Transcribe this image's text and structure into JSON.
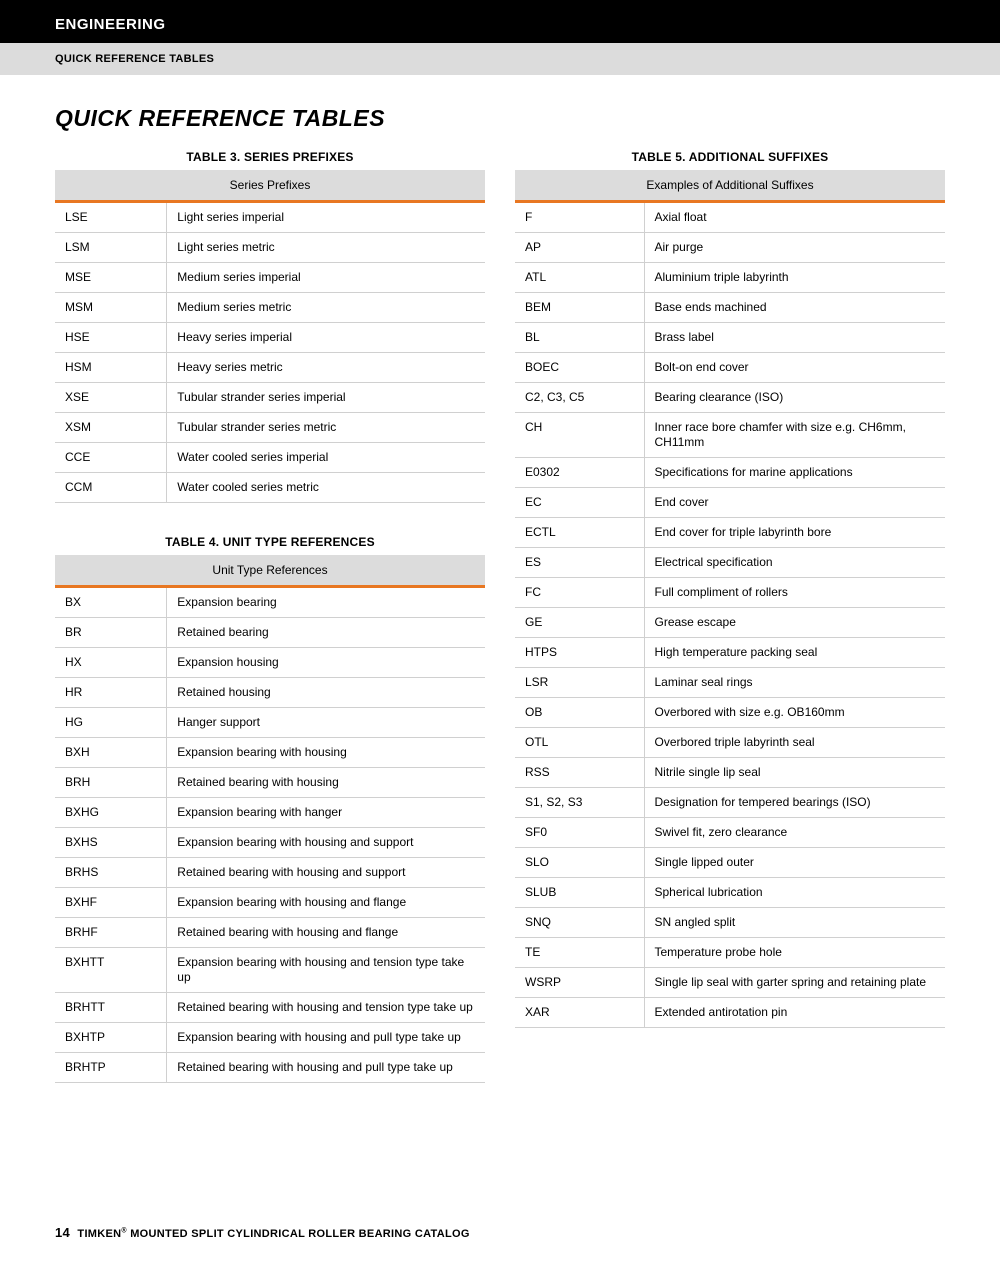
{
  "header": {
    "section": "ENGINEERING",
    "subsection": "QUICK REFERENCE TABLES"
  },
  "pageTitle": "QUICK REFERENCE TABLES",
  "colors": {
    "headerBg": "#000000",
    "subheaderBg": "#dcdcdc",
    "accentOrange": "#e87722",
    "rowBorder": "#d0d0d0"
  },
  "table3": {
    "caption": "TABLE 3. SERIES PREFIXES",
    "headerLabel": "Series Prefixes",
    "rows": [
      {
        "code": "LSE",
        "desc": "Light series imperial"
      },
      {
        "code": "LSM",
        "desc": "Light series metric"
      },
      {
        "code": "MSE",
        "desc": "Medium series imperial"
      },
      {
        "code": "MSM",
        "desc": "Medium series metric"
      },
      {
        "code": "HSE",
        "desc": "Heavy series imperial"
      },
      {
        "code": "HSM",
        "desc": "Heavy series metric"
      },
      {
        "code": "XSE",
        "desc": "Tubular strander series imperial"
      },
      {
        "code": "XSM",
        "desc": "Tubular strander series metric"
      },
      {
        "code": "CCE",
        "desc": "Water cooled series imperial"
      },
      {
        "code": "CCM",
        "desc": "Water cooled series metric"
      }
    ]
  },
  "table4": {
    "caption": "TABLE 4. UNIT TYPE REFERENCES",
    "headerLabel": "Unit Type References",
    "rows": [
      {
        "code": "BX",
        "desc": "Expansion bearing"
      },
      {
        "code": "BR",
        "desc": "Retained bearing"
      },
      {
        "code": "HX",
        "desc": "Expansion housing"
      },
      {
        "code": "HR",
        "desc": "Retained housing"
      },
      {
        "code": "HG",
        "desc": "Hanger support"
      },
      {
        "code": "BXH",
        "desc": "Expansion bearing with housing"
      },
      {
        "code": "BRH",
        "desc": "Retained bearing with housing"
      },
      {
        "code": "BXHG",
        "desc": "Expansion bearing with hanger"
      },
      {
        "code": "BXHS",
        "desc": "Expansion bearing with housing and support"
      },
      {
        "code": "BRHS",
        "desc": "Retained bearing with housing and support"
      },
      {
        "code": "BXHF",
        "desc": "Expansion bearing with housing and flange"
      },
      {
        "code": "BRHF",
        "desc": "Retained bearing with housing and flange"
      },
      {
        "code": "BXHTT",
        "desc": "Expansion bearing with housing and tension type take up"
      },
      {
        "code": "BRHTT",
        "desc": "Retained bearing with housing and tension type take up"
      },
      {
        "code": "BXHTP",
        "desc": "Expansion bearing with housing and pull type take up"
      },
      {
        "code": "BRHTP",
        "desc": "Retained bearing with housing and pull type take up"
      }
    ]
  },
  "table5": {
    "caption": "TABLE 5. ADDITIONAL SUFFIXES",
    "headerLabel": "Examples of Additional Suffixes",
    "rows": [
      {
        "code": "F",
        "desc": "Axial float"
      },
      {
        "code": "AP",
        "desc": "Air purge"
      },
      {
        "code": "ATL",
        "desc": "Aluminium triple labyrinth"
      },
      {
        "code": "BEM",
        "desc": "Base ends machined"
      },
      {
        "code": "BL",
        "desc": "Brass label"
      },
      {
        "code": "BOEC",
        "desc": "Bolt-on end cover"
      },
      {
        "code": "C2, C3, C5",
        "desc": "Bearing clearance (ISO)"
      },
      {
        "code": "CH",
        "desc": "Inner race bore chamfer with size e.g. CH6mm, CH11mm"
      },
      {
        "code": "E0302",
        "desc": "Specifications for marine applications"
      },
      {
        "code": "EC",
        "desc": "End cover"
      },
      {
        "code": "ECTL",
        "desc": "End cover for triple labyrinth bore"
      },
      {
        "code": "ES",
        "desc": "Electrical specification"
      },
      {
        "code": "FC",
        "desc": "Full compliment of rollers"
      },
      {
        "code": "GE",
        "desc": "Grease escape"
      },
      {
        "code": "HTPS",
        "desc": "High temperature packing seal"
      },
      {
        "code": "LSR",
        "desc": "Laminar seal rings"
      },
      {
        "code": "OB",
        "desc": "Overbored with size e.g. OB160mm"
      },
      {
        "code": "OTL",
        "desc": "Overbored triple labyrinth seal"
      },
      {
        "code": "RSS",
        "desc": "Nitrile single lip seal"
      },
      {
        "code": "S1, S2, S3",
        "desc": "Designation for tempered bearings (ISO)"
      },
      {
        "code": "SF0",
        "desc": "Swivel fit, zero clearance"
      },
      {
        "code": "SLO",
        "desc": "Single lipped outer"
      },
      {
        "code": "SLUB",
        "desc": "Spherical lubrication"
      },
      {
        "code": "SNQ",
        "desc": "SN angled split"
      },
      {
        "code": "TE",
        "desc": "Temperature probe hole"
      },
      {
        "code": "WSRP",
        "desc": "Single lip seal with garter spring and retaining plate"
      },
      {
        "code": "XAR",
        "desc": "Extended antirotation pin"
      }
    ]
  },
  "footer": {
    "pageNumber": "14",
    "brand": "TIMKEN",
    "reg": "®",
    "catalog": " MOUNTED SPLIT CYLINDRICAL ROLLER BEARING CATALOG"
  }
}
